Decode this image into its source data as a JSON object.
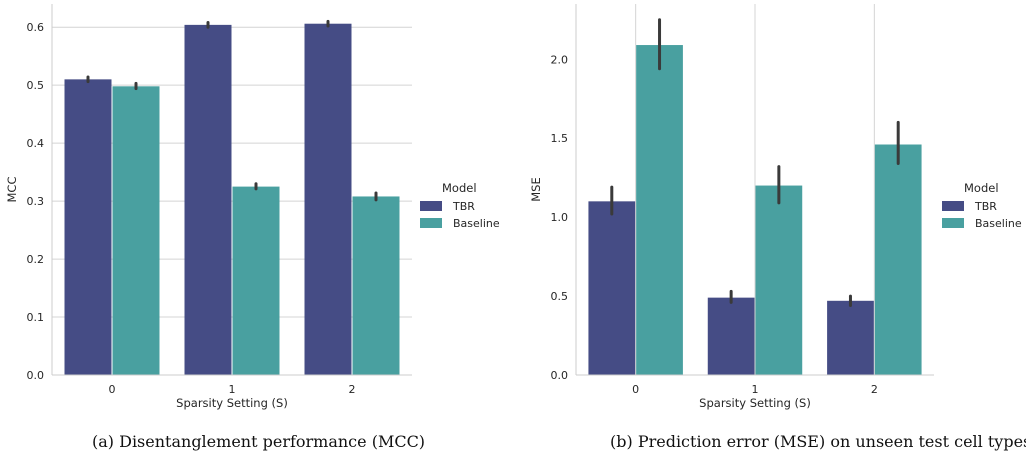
{
  "chart_data": [
    {
      "type": "bar",
      "xlabel": "Sparsity Setting (S)",
      "ylabel": "MCC",
      "categories": [
        "0",
        "1",
        "2"
      ],
      "ylim": [
        0,
        0.64
      ],
      "yticks": [
        0.0,
        0.1,
        0.2,
        0.3,
        0.4,
        0.5,
        0.6
      ],
      "ytick_labels": [
        "0.0",
        "0.1",
        "0.2",
        "0.3",
        "0.4",
        "0.5",
        "0.6"
      ],
      "grid": "horizontal",
      "legend_position": "right",
      "legend_title": "Model",
      "series": [
        {
          "name": "TBR",
          "color": "#454c85",
          "values": [
            0.51,
            0.604,
            0.606
          ],
          "err_low": [
            0.506,
            0.6,
            0.602
          ],
          "err_high": [
            0.514,
            0.608,
            0.61
          ]
        },
        {
          "name": "Baseline",
          "color": "#49a0a0",
          "values": [
            0.498,
            0.325,
            0.308
          ],
          "err_low": [
            0.494,
            0.321,
            0.302
          ],
          "err_high": [
            0.503,
            0.33,
            0.314
          ]
        }
      ]
    },
    {
      "type": "bar",
      "xlabel": "Sparsity Setting (S)",
      "ylabel": "MSE",
      "categories": [
        "0",
        "1",
        "2"
      ],
      "ylim": [
        0,
        2.35
      ],
      "yticks": [
        0.0,
        0.5,
        1.0,
        1.5,
        2.0
      ],
      "ytick_labels": [
        "0.0",
        "0.5",
        "1.0",
        "1.5",
        "2.0"
      ],
      "grid": "vertical",
      "legend_position": "right",
      "legend_title": "Model",
      "series": [
        {
          "name": "TBR",
          "color": "#454c85",
          "values": [
            1.1,
            0.49,
            0.47
          ],
          "err_low": [
            1.02,
            0.46,
            0.44
          ],
          "err_high": [
            1.19,
            0.53,
            0.5
          ]
        },
        {
          "name": "Baseline",
          "color": "#49a0a0",
          "values": [
            2.09,
            1.2,
            1.46
          ],
          "err_low": [
            1.94,
            1.09,
            1.34
          ],
          "err_high": [
            2.25,
            1.32,
            1.6
          ]
        }
      ]
    }
  ],
  "captions": {
    "a": "(a) Disentanglement performance (MCC)",
    "b": "(b) Prediction error (MSE) on unseen test cell types."
  }
}
